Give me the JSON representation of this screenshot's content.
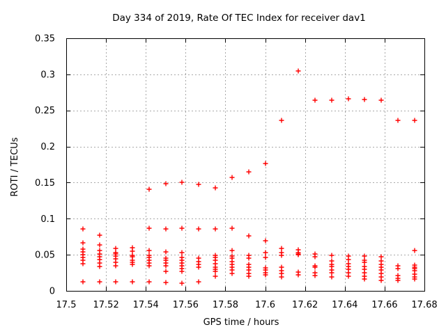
{
  "chart_data": {
    "type": "scatter",
    "title": "Day 334 of 2019, Rate Of TEC Index for receiver dav1",
    "xlabel": "GPS time / hours",
    "ylabel": "ROTI / TECUs",
    "xlim": [
      17.5,
      17.68
    ],
    "ylim": [
      0,
      0.35
    ],
    "xticks": [
      17.5,
      17.52,
      17.54,
      17.56,
      17.58,
      17.6,
      17.62,
      17.64,
      17.66,
      17.68
    ],
    "xtick_labels": [
      "17.5",
      "17.52",
      "17.54",
      "17.56",
      "17.58",
      "17.6",
      "17.62",
      "17.64",
      "17.66",
      "17.68"
    ],
    "yticks": [
      0,
      0.05,
      0.1,
      0.15,
      0.2,
      0.25,
      0.3,
      0.35
    ],
    "ytick_labels": [
      "0",
      "0.05",
      "0.1",
      "0.15",
      "0.2",
      "0.25",
      "0.3",
      "0.35"
    ],
    "grid": true,
    "grid_style": "dotted",
    "legend": "none",
    "marker": "plus",
    "colors": {
      "marker": "#ff0000",
      "grid": "#a8a8a8",
      "axis": "#000000",
      "text": "#000000",
      "background": "#ffffff"
    },
    "series": [
      {
        "name": "ROTI",
        "clusters": [
          {
            "t": 17.5083,
            "values": [
              0.0855,
              0.067,
              0.058,
              0.054,
              0.0505,
              0.046,
              0.042,
              0.038,
              0.013
            ]
          },
          {
            "t": 17.5167,
            "values": [
              0.0775,
              0.064,
              0.056,
              0.051,
              0.047,
              0.043,
              0.0385,
              0.0335,
              0.0125
            ]
          },
          {
            "t": 17.525,
            "values": [
              0.059,
              0.053,
              0.051,
              0.0485,
              0.044,
              0.0395,
              0.035,
              0.013
            ]
          },
          {
            "t": 17.5333,
            "values": [
              0.06,
              0.055,
              0.049,
              0.0475,
              0.0425,
              0.04,
              0.0365,
              0.0125
            ]
          },
          {
            "t": 17.5417,
            "values": [
              0.141,
              0.087,
              0.056,
              0.049,
              0.046,
              0.0425,
              0.039,
              0.035,
              0.0125
            ]
          },
          {
            "t": 17.55,
            "values": [
              0.1485,
              0.0855,
              0.054,
              0.045,
              0.042,
              0.039,
              0.035,
              0.027,
              0.012
            ]
          },
          {
            "t": 17.5583,
            "values": [
              0.15,
              0.0865,
              0.053,
              0.046,
              0.042,
              0.039,
              0.035,
              0.031,
              0.027,
              0.011
            ]
          },
          {
            "t": 17.5667,
            "values": [
              0.148,
              0.0855,
              0.045,
              0.0405,
              0.0365,
              0.033,
              0.0125
            ]
          },
          {
            "t": 17.575,
            "values": [
              0.143,
              0.0855,
              0.049,
              0.046,
              0.042,
              0.038,
              0.033,
              0.03,
              0.027,
              0.0205
            ]
          },
          {
            "t": 17.5833,
            "values": [
              0.157,
              0.0865,
              0.056,
              0.048,
              0.045,
              0.0405,
              0.0365,
              0.033,
              0.029,
              0.024
            ]
          },
          {
            "t": 17.5917,
            "values": [
              0.165,
              0.076,
              0.049,
              0.045,
              0.0365,
              0.033,
              0.029,
              0.024,
              0.02
            ]
          },
          {
            "t": 17.6,
            "values": [
              0.176,
              0.069,
              0.053,
              0.046,
              0.032,
              0.029,
              0.025,
              0.022
            ]
          },
          {
            "t": 17.6083,
            "values": [
              0.236,
              0.0585,
              0.053,
              0.049,
              0.033,
              0.028,
              0.024,
              0.019
            ]
          },
          {
            "t": 17.6167,
            "values": [
              0.305,
              0.057,
              0.053,
              0.051,
              0.05,
              0.026,
              0.022
            ]
          },
          {
            "t": 17.625,
            "values": [
              0.264,
              0.051,
              0.047,
              0.035,
              0.033,
              0.025,
              0.021
            ]
          },
          {
            "t": 17.6333,
            "values": [
              0.264,
              0.049,
              0.0415,
              0.037,
              0.0335,
              0.029,
              0.025,
              0.019
            ]
          },
          {
            "t": 17.6417,
            "values": [
              0.266,
              0.048,
              0.043,
              0.038,
              0.034,
              0.03,
              0.025,
              0.0205
            ]
          },
          {
            "t": 17.65,
            "values": [
              0.265,
              0.048,
              0.0425,
              0.04,
              0.034,
              0.03,
              0.025,
              0.02,
              0.016
            ]
          },
          {
            "t": 17.6583,
            "values": [
              0.264,
              0.047,
              0.0415,
              0.037,
              0.033,
              0.029,
              0.024,
              0.019,
              0.0145
            ]
          },
          {
            "t": 17.6667,
            "values": [
              0.236,
              0.035,
              0.031,
              0.021,
              0.0175,
              0.0145
            ]
          },
          {
            "t": 17.675,
            "values": [
              0.236,
              0.056,
              0.036,
              0.033,
              0.031,
              0.028,
              0.023,
              0.019,
              0.016
            ]
          }
        ]
      }
    ]
  }
}
